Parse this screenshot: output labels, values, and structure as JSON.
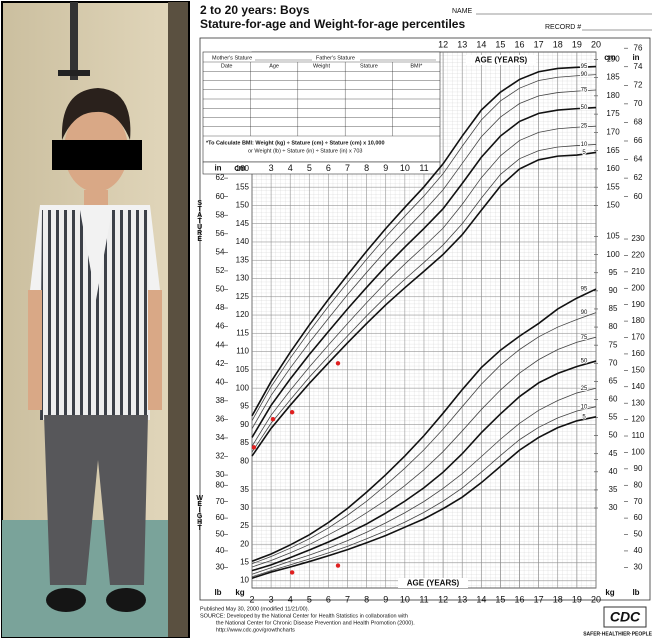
{
  "form": {
    "title": "2 to 20 years: Boys",
    "subtitle": "Stature-for-age and Weight-for-age percentiles",
    "name_label": "NAME",
    "record_label": "RECORD #",
    "mothers_stature": "Mother's Stature",
    "fathers_stature": "Father's Stature",
    "columns": [
      "Date",
      "Age",
      "Weight",
      "Stature",
      "BMI*"
    ],
    "bmi_note_1": "*To Calculate BMI: Weight (kg) ÷ Stature (cm) ÷ Stature (cm) x 10,000",
    "bmi_note_2": "or Weight (lb) ÷ Stature (in) ÷ Stature (in) x 703",
    "footer_1": "Published May 30, 2000 (modified 11/21/00).",
    "footer_2": "SOURCE: Developed by the National Center for Health Statistics in collaboration with",
    "footer_3": "the National Center for Chronic Disease Prevention and Health Promotion (2000).",
    "footer_4": "http://www.cdc.gov/growthcharts",
    "logo": "CDC",
    "slogan": "SAFER·HEALTHIER·PEOPLE"
  },
  "chart_data": [
    {
      "type": "line",
      "y_label": "STATURE",
      "x_label": "AGE (YEARS)",
      "unit": "cm",
      "unit2": "in",
      "x": [
        2,
        3,
        4,
        5,
        6,
        7,
        8,
        9,
        10,
        11,
        12,
        13,
        14,
        15,
        16,
        17,
        18,
        19,
        20
      ],
      "xlim": [
        2,
        20
      ],
      "xticks": [
        12,
        13,
        14,
        15,
        16,
        17,
        18,
        19,
        20
      ],
      "xticks_inner": [
        3,
        4,
        5,
        6,
        7,
        8,
        9,
        10,
        11
      ],
      "ylim": [
        45.3,
        192
      ],
      "yticks": [
        80,
        85,
        90,
        95,
        100,
        105,
        110,
        115,
        120,
        125,
        130,
        135,
        140,
        145,
        150,
        155,
        160
      ],
      "y2ticks": [
        150,
        155,
        160,
        165,
        170,
        175,
        180,
        185,
        190
      ],
      "y_in_lim": [
        17.83,
        75.59
      ],
      "y_in_ticks": [
        30,
        32,
        34,
        36,
        38,
        40,
        42,
        44,
        46,
        48,
        50,
        52,
        54,
        56,
        58,
        60,
        62
      ],
      "y2_in_ticks": [
        60,
        62,
        64,
        66,
        68,
        70,
        72,
        74,
        76
      ],
      "series": [
        {
          "name": "95",
          "color": "#111",
          "width": 1.6,
          "values": [
            92.4,
            101.8,
            109.8,
            117.3,
            124.3,
            131,
            137.5,
            143.7,
            149.5,
            155.1,
            161.4,
            169,
            176.1,
            181,
            184.5,
            186.6,
            187.5,
            187.8,
            188
          ]
        },
        {
          "name": "90",
          "color": "#444",
          "width": 0.8,
          "values": [
            91.1,
            100.4,
            108.2,
            115.5,
            122.4,
            128.9,
            135.3,
            141.4,
            147.1,
            152.6,
            158.7,
            166.2,
            173.4,
            178.6,
            182.1,
            184.2,
            185.1,
            185.5,
            185.8
          ]
        },
        {
          "name": "75",
          "color": "#444",
          "width": 0.8,
          "values": [
            88.9,
            98,
            105.5,
            112.5,
            119.1,
            125.6,
            131.7,
            137.6,
            143.1,
            148.5,
            154.3,
            161.5,
            168.8,
            174.2,
            177.9,
            180,
            180.9,
            181.3,
            181.6
          ]
        },
        {
          "name": "50",
          "color": "#111",
          "width": 1.6,
          "values": [
            86.5,
            95.3,
            102.5,
            109.2,
            115.5,
            121.7,
            127.6,
            133.3,
            138.6,
            143.7,
            149.1,
            156,
            163.2,
            169,
            173,
            175.2,
            176.1,
            176.5,
            176.8
          ]
        },
        {
          "name": "25",
          "color": "#444",
          "width": 0.8,
          "values": [
            84.1,
            92.6,
            99.4,
            105.8,
            111.8,
            117.7,
            123.4,
            128.9,
            134,
            138.8,
            143.8,
            150.3,
            157.6,
            163.6,
            167.8,
            170,
            171,
            171.4,
            171.7
          ]
        },
        {
          "name": "10",
          "color": "#444",
          "width": 0.8,
          "values": [
            82.5,
            90.4,
            96.8,
            103,
            108.7,
            114.3,
            119.8,
            125,
            129.8,
            134.4,
            139.2,
            145,
            152,
            158.5,
            162.8,
            165,
            166,
            166.4,
            166.7
          ]
        },
        {
          "name": "5",
          "color": "#111",
          "width": 1.6,
          "values": [
            81.4,
            89,
            95.3,
            101.3,
            106.9,
            112.4,
            117.7,
            122.8,
            127.5,
            132,
            136.6,
            142,
            148.7,
            155.3,
            160,
            162.5,
            163.5,
            163.8,
            164.5
          ]
        }
      ],
      "markers": {
        "color": "#e02020",
        "x": [
          2.1,
          3.1,
          4.1,
          6.5
        ],
        "y": [
          83.8,
          91.5,
          93.4,
          106.8
        ]
      }
    },
    {
      "type": "line",
      "y_label": "WEIGHT",
      "x_label": "AGE (YEARS)",
      "unit": "kg",
      "unit2": "lb",
      "x": [
        2,
        3,
        4,
        5,
        6,
        7,
        8,
        9,
        10,
        11,
        12,
        13,
        14,
        15,
        16,
        17,
        18,
        19,
        20
      ],
      "xlim": [
        2,
        20
      ],
      "xticks": [
        2,
        3,
        4,
        5,
        6,
        7,
        8,
        9,
        10,
        11,
        12,
        13,
        14,
        15,
        16,
        17,
        18,
        19,
        20
      ],
      "ylim": [
        7.9,
        156
      ],
      "yticks": [
        10,
        15,
        20,
        25,
        30,
        35
      ],
      "y2ticks": [
        30,
        35,
        40,
        45,
        50,
        55,
        60,
        65,
        70,
        75,
        80,
        85,
        90,
        95,
        100,
        105
      ],
      "y_in_lim": [
        17.42,
        343.92
      ],
      "y_in_ticks": [
        30,
        40,
        50,
        60,
        70,
        80
      ],
      "y2_in_ticks": [
        30,
        40,
        50,
        60,
        70,
        80,
        90,
        100,
        110,
        120,
        130,
        140,
        150,
        160,
        170,
        180,
        190,
        200,
        210,
        220,
        230
      ],
      "series": [
        {
          "name": "95",
          "color": "#111",
          "width": 1.6,
          "values": [
            15.3,
            17.3,
            19.8,
            22.6,
            26,
            29.9,
            34.4,
            39.2,
            44.4,
            50,
            56.2,
            62.7,
            68.8,
            73.6,
            77.5,
            81,
            85,
            88,
            90.5
          ]
        },
        {
          "name": "90",
          "color": "#444",
          "width": 0.8,
          "values": [
            14.6,
            16.6,
            18.9,
            21.5,
            24.5,
            28,
            31.9,
            36.3,
            41,
            46.1,
            51.8,
            58,
            64.2,
            69.5,
            73.8,
            77.3,
            80,
            82.1,
            84
          ]
        },
        {
          "name": "75",
          "color": "#444",
          "width": 0.8,
          "values": [
            13.7,
            15.5,
            17.6,
            19.9,
            22.6,
            25.4,
            28.7,
            32.2,
            36.2,
            40.6,
            45.6,
            51.3,
            57.2,
            62.6,
            67.3,
            71,
            73.8,
            75.8,
            77.2
          ]
        },
        {
          "name": "50",
          "color": "#111",
          "width": 1.6,
          "values": [
            12.7,
            14.3,
            16.3,
            18.4,
            20.6,
            23,
            25.6,
            28.6,
            31.9,
            35.6,
            39.9,
            45,
            50.8,
            56,
            60.8,
            64.6,
            67.2,
            69.1,
            70.6
          ]
        },
        {
          "name": "25",
          "color": "#444",
          "width": 0.8,
          "values": [
            11.7,
            13.5,
            15.3,
            17,
            18.9,
            21,
            23.3,
            25.9,
            28.7,
            31.8,
            35.4,
            39.5,
            44.2,
            49,
            53.4,
            57,
            59.7,
            61.8,
            63.1
          ]
        },
        {
          "name": "10",
          "color": "#444",
          "width": 0.8,
          "values": [
            11,
            12.7,
            14.3,
            15.9,
            17.6,
            19.4,
            21.5,
            23.7,
            26.1,
            28.8,
            31.9,
            35.5,
            39.9,
            44.5,
            48.9,
            52.3,
            54.9,
            56.8,
            58
          ]
        },
        {
          "name": "5",
          "color": "#111",
          "width": 1.6,
          "values": [
            10.6,
            12.3,
            13.7,
            15.2,
            16.8,
            18.5,
            20.4,
            22.4,
            24.7,
            27,
            29.8,
            33,
            37,
            41.5,
            46,
            49.5,
            52.2,
            54.1,
            55.2
          ]
        }
      ],
      "markers": {
        "color": "#e02020",
        "x": [
          4.1,
          6.5
        ],
        "y": [
          12.2,
          14.1
        ]
      }
    }
  ]
}
